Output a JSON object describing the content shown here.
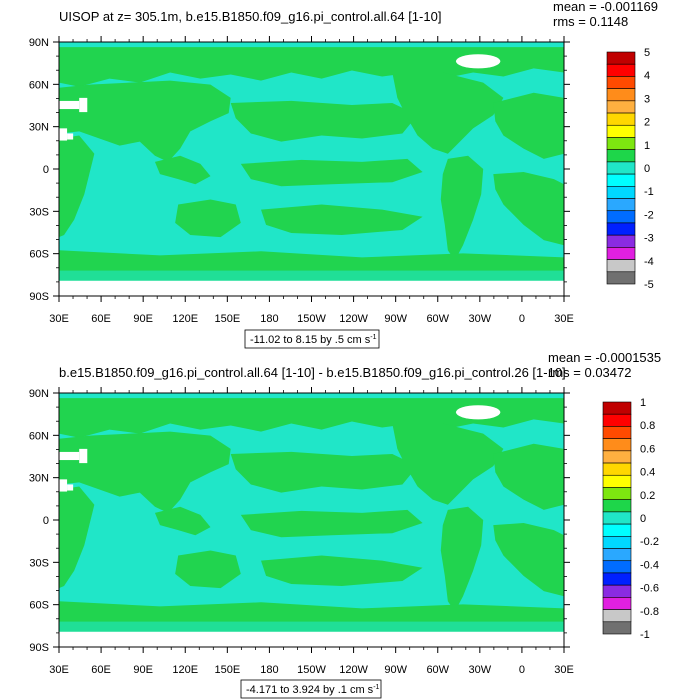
{
  "colors": {
    "land": "#21d44f",
    "ocean_light": "#20e6c8",
    "ocean_mid": "#00ffff",
    "ice": "#ffffff",
    "frame": "#000000"
  },
  "axes": {
    "lat_labels": [
      "90N",
      "60N",
      "30N",
      "0",
      "30S",
      "60S",
      "90S"
    ],
    "lon_labels": [
      "30E",
      "60E",
      "90E",
      "120E",
      "150E",
      "180",
      "150W",
      "120W",
      "90W",
      "60W",
      "30W",
      "0",
      "30E"
    ]
  },
  "panels": [
    {
      "title": "UISOP at z= 305.1m, b.e15.B1850.f09_g16.pi_control.all.64 [1-10]",
      "mean": "mean = -0.001169",
      "rms": "rms = 0.1148",
      "range": "-11.02 to 8.15 by .5 cm s",
      "range_sup": "-1",
      "colorbar": {
        "labels": [
          "5",
          "4",
          "3",
          "2",
          "1",
          "0",
          "-1",
          "-2",
          "-3",
          "-4",
          "-5"
        ],
        "colors": [
          "#c00000",
          "#ff0000",
          "#ff4a00",
          "#ff8c1a",
          "#ffb040",
          "#ffd700",
          "#ffff00",
          "#7de610",
          "#1ed64a",
          "#20e6c8",
          "#00ffff",
          "#00d8ff",
          "#2aa8ff",
          "#006cff",
          "#0020ff",
          "#8a2be2",
          "#e020e0",
          "#c8c8c8",
          "#707070"
        ]
      }
    },
    {
      "title": "b.e15.B1850.f09_g16.pi_control.all.64 [1-10] - b.e15.B1850.f09_g16.pi_control.26 [1-10]",
      "mean": "mean = -0.0001535",
      "rms": "rms = 0.03472",
      "range": "-4.171 to 3.924 by .1 cm s",
      "range_sup": "-1",
      "colorbar": {
        "labels": [
          "1",
          "0.8",
          "0.6",
          "0.4",
          "0.2",
          "0",
          "-0.2",
          "-0.4",
          "-0.6",
          "-0.8",
          "-1"
        ],
        "colors": [
          "#c00000",
          "#ff0000",
          "#ff4a00",
          "#ff8c1a",
          "#ffb040",
          "#ffd700",
          "#ffff00",
          "#7de610",
          "#1ed64a",
          "#20e6c8",
          "#00ffff",
          "#00d8ff",
          "#2aa8ff",
          "#006cff",
          "#0020ff",
          "#8a2be2",
          "#e020e0",
          "#c8c8c8",
          "#707070"
        ]
      }
    }
  ]
}
